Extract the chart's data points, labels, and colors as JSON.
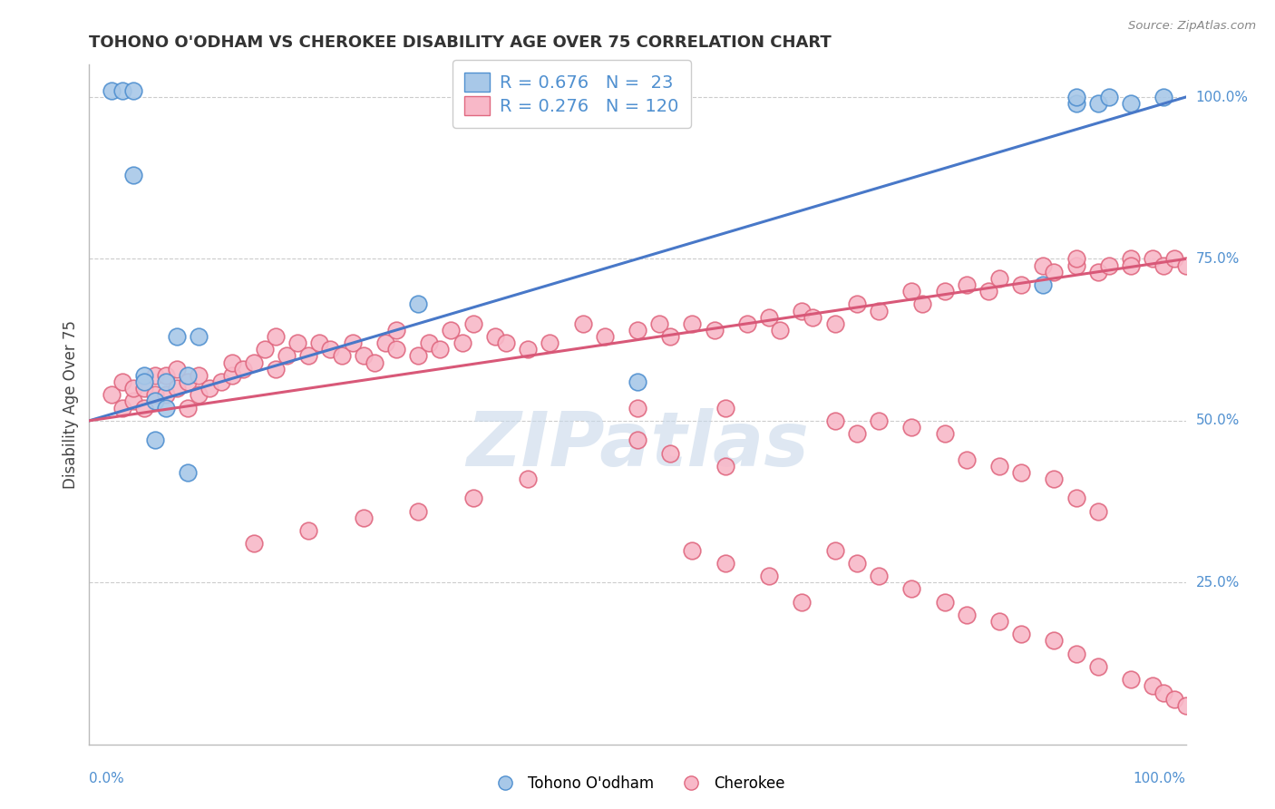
{
  "title": "TOHONO O'ODHAM VS CHEROKEE DISABILITY AGE OVER 75 CORRELATION CHART",
  "source": "Source: ZipAtlas.com",
  "ylabel": "Disability Age Over 75",
  "xlim": [
    0,
    1
  ],
  "ylim": [
    0,
    1.05
  ],
  "y_tick_labels": [
    "25.0%",
    "50.0%",
    "75.0%",
    "100.0%"
  ],
  "y_tick_positions": [
    0.25,
    0.5,
    0.75,
    1.0
  ],
  "legend_blue_label": "Tohono O'odham",
  "legend_pink_label": "Cherokee",
  "blue_R": 0.676,
  "blue_N": 23,
  "pink_R": 0.276,
  "pink_N": 120,
  "blue_fill_color": "#a8c8e8",
  "pink_fill_color": "#f8b8c8",
  "blue_edge_color": "#5090d0",
  "pink_edge_color": "#e06880",
  "blue_line_color": "#4878c8",
  "pink_line_color": "#d85878",
  "label_color": "#5090d0",
  "watermark_color": "#c8d8ea",
  "background_color": "#ffffff",
  "grid_color": "#cccccc",
  "title_color": "#333333",
  "source_color": "#888888",
  "ylabel_color": "#444444",
  "blue_line_x0": 0.0,
  "blue_line_y0": 0.5,
  "blue_line_x1": 1.0,
  "blue_line_y1": 1.0,
  "pink_line_x0": 0.0,
  "pink_line_y0": 0.5,
  "pink_line_x1": 1.0,
  "pink_line_y1": 0.75,
  "blue_scatter_x": [
    0.02,
    0.03,
    0.04,
    0.04,
    0.05,
    0.05,
    0.06,
    0.06,
    0.07,
    0.07,
    0.08,
    0.09,
    0.09,
    0.1,
    0.3,
    0.5,
    0.87,
    0.9,
    0.9,
    0.92,
    0.93,
    0.95,
    0.98
  ],
  "blue_scatter_y": [
    1.01,
    1.01,
    1.01,
    0.88,
    0.57,
    0.56,
    0.53,
    0.47,
    0.56,
    0.52,
    0.63,
    0.57,
    0.42,
    0.63,
    0.68,
    0.56,
    0.71,
    0.99,
    1.0,
    0.99,
    1.0,
    0.99,
    1.0
  ],
  "pink_scatter_x": [
    0.02,
    0.03,
    0.03,
    0.04,
    0.04,
    0.05,
    0.05,
    0.06,
    0.06,
    0.07,
    0.07,
    0.08,
    0.08,
    0.09,
    0.09,
    0.1,
    0.1,
    0.11,
    0.12,
    0.13,
    0.13,
    0.14,
    0.15,
    0.16,
    0.17,
    0.17,
    0.18,
    0.19,
    0.2,
    0.21,
    0.22,
    0.23,
    0.24,
    0.25,
    0.26,
    0.27,
    0.28,
    0.28,
    0.3,
    0.31,
    0.32,
    0.33,
    0.34,
    0.35,
    0.37,
    0.38,
    0.4,
    0.42,
    0.45,
    0.47,
    0.5,
    0.5,
    0.52,
    0.53,
    0.55,
    0.57,
    0.58,
    0.6,
    0.62,
    0.63,
    0.65,
    0.66,
    0.68,
    0.7,
    0.72,
    0.75,
    0.76,
    0.78,
    0.8,
    0.82,
    0.83,
    0.85,
    0.87,
    0.88,
    0.9,
    0.9,
    0.92,
    0.93,
    0.95,
    0.95,
    0.97,
    0.98,
    0.99,
    1.0,
    0.68,
    0.7,
    0.72,
    0.75,
    0.78,
    0.8,
    0.83,
    0.85,
    0.88,
    0.9,
    0.92,
    0.5,
    0.53,
    0.58,
    0.4,
    0.35,
    0.3,
    0.25,
    0.2,
    0.15,
    0.55,
    0.58,
    0.62,
    0.65,
    0.68,
    0.7,
    0.72,
    0.75,
    0.78,
    0.8,
    0.83,
    0.85,
    0.88,
    0.9,
    0.92,
    0.95,
    0.97,
    0.98,
    0.99,
    1.0
  ],
  "pink_scatter_y": [
    0.54,
    0.52,
    0.56,
    0.53,
    0.55,
    0.52,
    0.55,
    0.54,
    0.57,
    0.54,
    0.57,
    0.55,
    0.58,
    0.52,
    0.56,
    0.54,
    0.57,
    0.55,
    0.56,
    0.57,
    0.59,
    0.58,
    0.59,
    0.61,
    0.58,
    0.63,
    0.6,
    0.62,
    0.6,
    0.62,
    0.61,
    0.6,
    0.62,
    0.6,
    0.59,
    0.62,
    0.61,
    0.64,
    0.6,
    0.62,
    0.61,
    0.64,
    0.62,
    0.65,
    0.63,
    0.62,
    0.61,
    0.62,
    0.65,
    0.63,
    0.64,
    0.52,
    0.65,
    0.63,
    0.65,
    0.64,
    0.52,
    0.65,
    0.66,
    0.64,
    0.67,
    0.66,
    0.65,
    0.68,
    0.67,
    0.7,
    0.68,
    0.7,
    0.71,
    0.7,
    0.72,
    0.71,
    0.74,
    0.73,
    0.74,
    0.75,
    0.73,
    0.74,
    0.75,
    0.74,
    0.75,
    0.74,
    0.75,
    0.74,
    0.5,
    0.48,
    0.5,
    0.49,
    0.48,
    0.44,
    0.43,
    0.42,
    0.41,
    0.38,
    0.36,
    0.47,
    0.45,
    0.43,
    0.41,
    0.38,
    0.36,
    0.35,
    0.33,
    0.31,
    0.3,
    0.28,
    0.26,
    0.22,
    0.3,
    0.28,
    0.26,
    0.24,
    0.22,
    0.2,
    0.19,
    0.17,
    0.16,
    0.14,
    0.12,
    0.1,
    0.09,
    0.08,
    0.07,
    0.06
  ]
}
